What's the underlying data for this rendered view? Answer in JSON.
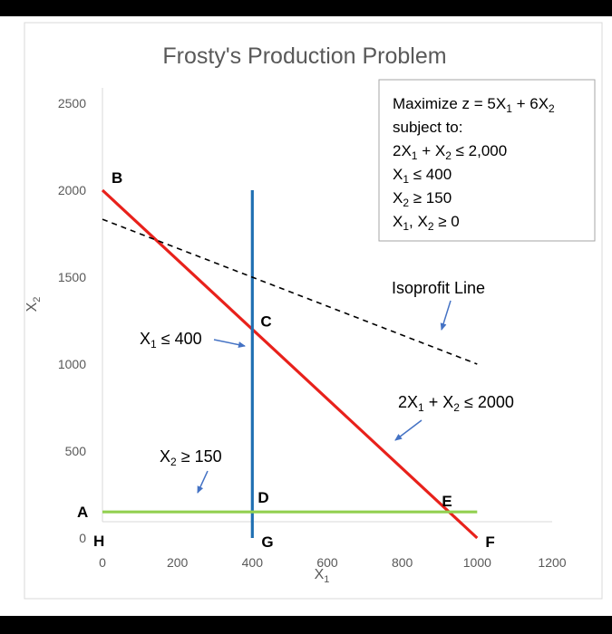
{
  "chart_data": {
    "type": "line",
    "title": "Frosty's Production Problem",
    "xlabel": "X",
    "xlabel_sub": "1",
    "ylabel": "X",
    "ylabel_sub": "2",
    "xlim": [
      0,
      1200
    ],
    "ylim": [
      0,
      2500
    ],
    "x_ticks": [
      0,
      200,
      400,
      600,
      800,
      1000,
      1200
    ],
    "y_ticks": [
      0,
      500,
      1000,
      1500,
      2000,
      2500
    ],
    "grid": false,
    "series": [
      {
        "role": "constraint-2x1-x2",
        "color": "#e8211b",
        "dash": false,
        "points": [
          [
            0,
            2000
          ],
          [
            1000,
            0
          ]
        ]
      },
      {
        "role": "constraint-x1",
        "color": "#1f6fb2",
        "dash": false,
        "points": [
          [
            400,
            0
          ],
          [
            400,
            2000
          ]
        ]
      },
      {
        "role": "constraint-x2",
        "color": "#92d050",
        "dash": false,
        "points": [
          [
            0,
            150
          ],
          [
            1000,
            150
          ]
        ]
      },
      {
        "role": "isoprofit",
        "color": "#000000",
        "dash": true,
        "points": [
          [
            0,
            1833
          ],
          [
            1000,
            1000
          ]
        ]
      }
    ],
    "point_labels": [
      {
        "text": "B",
        "x": 0,
        "y": 2000
      },
      {
        "text": "C",
        "x": 400,
        "y": 1200
      },
      {
        "text": "D",
        "x": 400,
        "y": 150
      },
      {
        "text": "E",
        "x": 925,
        "y": 150
      },
      {
        "text": "A",
        "x": 0,
        "y": 150
      },
      {
        "text": "H",
        "x": 0,
        "y": 0
      },
      {
        "text": "G",
        "x": 400,
        "y": 0
      },
      {
        "text": "F",
        "x": 1000,
        "y": 0
      }
    ],
    "annotations": {
      "isoprofit_label": "Isoprofit Line",
      "x1_constraint": {
        "a": "X",
        "a_sub": "1",
        "rest": " ≤ 400"
      },
      "x2_constraint": {
        "a": "X",
        "a_sub": "2",
        "rest": "  ≥ 150"
      },
      "resource_constraint": {
        "p1": "2X",
        "s1": "1",
        "p2": " + X",
        "s2": "2",
        "p3": " ≤ 2000"
      }
    },
    "model_box": {
      "line1": {
        "p1": "Maximize z = 5X",
        "s1": "1",
        "p2": " + 6X",
        "s2": "2"
      },
      "line2": "subject to:",
      "line3": {
        "p1": "2X",
        "s1": "1",
        "p2": " + X",
        "s2": "2",
        "p3": " ≤ 2,000"
      },
      "line4": {
        "p1": "X",
        "s1": "1",
        "p2": " ≤ 400"
      },
      "line5": {
        "p1": "X",
        "s1": "2",
        "p2": " ≥ 150"
      },
      "line6": {
        "p1": "X",
        "s1": "1",
        "p2": ", X",
        "s2": "2",
        "p3": " ≥  0"
      }
    },
    "arrow_color": "#4472c4"
  }
}
